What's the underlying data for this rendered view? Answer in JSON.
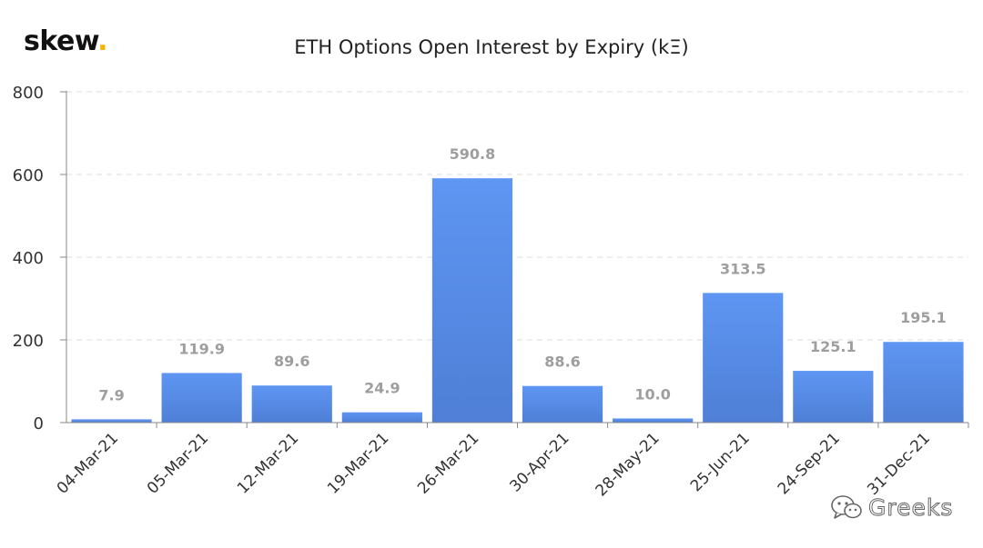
{
  "logo": {
    "text": "skew",
    "dot": "."
  },
  "watermark": {
    "text": "Greeks",
    "icon": "wechat-icon"
  },
  "colors": {
    "bar_top": "#5e96f3",
    "bar_bottom": "#4f7fd6",
    "value_label": "#9e9e9e",
    "axis_text": "#333333",
    "grid": "#dddddd",
    "logo_dot": "#f5b400"
  },
  "chart_data": {
    "type": "bar",
    "title": "ETH Options Open Interest by Expiry (kΞ)",
    "xlabel": "",
    "ylabel": "",
    "categories": [
      "04-Mar-21",
      "05-Mar-21",
      "12-Mar-21",
      "19-Mar-21",
      "26-Mar-21",
      "30-Apr-21",
      "28-May-21",
      "25-Jun-21",
      "24-Sep-21",
      "31-Dec-21"
    ],
    "values": [
      7.9,
      119.9,
      89.6,
      24.9,
      590.8,
      88.6,
      10.0,
      313.5,
      125.1,
      195.1
    ],
    "value_labels": [
      "7.9",
      "119.9",
      "89.6",
      "24.9",
      "590.8",
      "88.6",
      "10.0",
      "313.5",
      "125.1",
      "195.1"
    ],
    "ylim": [
      0,
      800
    ],
    "yticks": [
      0,
      200,
      400,
      600,
      800
    ],
    "ytick_labels": [
      "0",
      "200",
      "400",
      "600",
      "800"
    ],
    "grid": "horizontal-dashed",
    "legend": "none"
  }
}
